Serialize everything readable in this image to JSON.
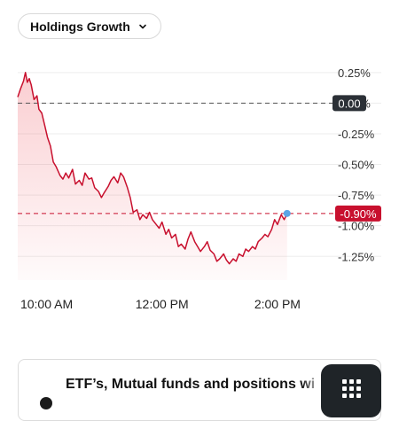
{
  "dropdown": {
    "label": "Holdings Growth",
    "icon": "chevron-down-icon"
  },
  "chart_data": {
    "type": "area",
    "yunit": "%",
    "ylim": [
      -1.4,
      0.35
    ],
    "yticks": [
      0.25,
      0.0,
      -0.25,
      -0.5,
      -0.75,
      -1.0,
      -1.25
    ],
    "ytick_labels": [
      "0.25%",
      "0.00%",
      "-0.25%",
      "-0.50%",
      "-0.75%",
      "-1.00%",
      "-1.25%"
    ],
    "xlim": [
      "09:30",
      "15:00"
    ],
    "xticks": [
      "10:00",
      "12:00",
      "14:00"
    ],
    "xtick_labels": [
      "10:00 AM",
      "12:00 PM",
      "2:00 PM"
    ],
    "grid": true,
    "baseline_value": 0.0,
    "baseline_label": "0.00",
    "current_value": -0.9,
    "current_label": "-0.90%",
    "series": [
      {
        "color": "#c8102e",
        "points": [
          [
            "09:30",
            0.05
          ],
          [
            "09:33",
            0.12
          ],
          [
            "09:36",
            0.18
          ],
          [
            "09:38",
            0.25
          ],
          [
            "09:40",
            0.17
          ],
          [
            "09:42",
            0.2
          ],
          [
            "09:44",
            0.15
          ],
          [
            "09:47",
            0.03
          ],
          [
            "09:50",
            0.06
          ],
          [
            "09:52",
            -0.05
          ],
          [
            "09:55",
            -0.08
          ],
          [
            "09:58",
            -0.18
          ],
          [
            "10:01",
            -0.28
          ],
          [
            "10:04",
            -0.35
          ],
          [
            "10:07",
            -0.48
          ],
          [
            "10:10",
            -0.52
          ],
          [
            "10:14",
            -0.59
          ],
          [
            "10:17",
            -0.62
          ],
          [
            "10:20",
            -0.57
          ],
          [
            "10:23",
            -0.61
          ],
          [
            "10:27",
            -0.54
          ],
          [
            "10:30",
            -0.66
          ],
          [
            "10:34",
            -0.63
          ],
          [
            "10:37",
            -0.67
          ],
          [
            "10:40",
            -0.57
          ],
          [
            "10:44",
            -0.62
          ],
          [
            "10:47",
            -0.61
          ],
          [
            "10:50",
            -0.69
          ],
          [
            "10:54",
            -0.72
          ],
          [
            "10:57",
            -0.77
          ],
          [
            "11:00",
            -0.73
          ],
          [
            "11:04",
            -0.68
          ],
          [
            "11:07",
            -0.63
          ],
          [
            "11:10",
            -0.6
          ],
          [
            "11:14",
            -0.65
          ],
          [
            "11:17",
            -0.57
          ],
          [
            "11:20",
            -0.6
          ],
          [
            "11:24",
            -0.69
          ],
          [
            "11:27",
            -0.77
          ],
          [
            "11:30",
            -0.89
          ],
          [
            "11:34",
            -0.87
          ],
          [
            "11:37",
            -0.95
          ],
          [
            "11:40",
            -0.91
          ],
          [
            "11:44",
            -0.94
          ],
          [
            "11:47",
            -0.89
          ],
          [
            "11:50",
            -0.95
          ],
          [
            "11:54",
            -0.99
          ],
          [
            "11:57",
            -1.02
          ],
          [
            "12:00",
            -0.97
          ],
          [
            "12:04",
            -1.07
          ],
          [
            "12:07",
            -1.03
          ],
          [
            "12:10",
            -1.1
          ],
          [
            "12:14",
            -1.07
          ],
          [
            "12:17",
            -1.17
          ],
          [
            "12:20",
            -1.15
          ],
          [
            "12:24",
            -1.19
          ],
          [
            "12:27",
            -1.11
          ],
          [
            "12:30",
            -1.05
          ],
          [
            "12:34",
            -1.13
          ],
          [
            "12:37",
            -1.17
          ],
          [
            "12:40",
            -1.21
          ],
          [
            "12:44",
            -1.17
          ],
          [
            "12:47",
            -1.13
          ],
          [
            "12:50",
            -1.2
          ],
          [
            "12:54",
            -1.23
          ],
          [
            "12:57",
            -1.29
          ],
          [
            "13:00",
            -1.27
          ],
          [
            "13:04",
            -1.23
          ],
          [
            "13:07",
            -1.28
          ],
          [
            "13:10",
            -1.31
          ],
          [
            "13:14",
            -1.27
          ],
          [
            "13:17",
            -1.29
          ],
          [
            "13:20",
            -1.23
          ],
          [
            "13:24",
            -1.25
          ],
          [
            "13:27",
            -1.19
          ],
          [
            "13:30",
            -1.21
          ],
          [
            "13:34",
            -1.17
          ],
          [
            "13:37",
            -1.19
          ],
          [
            "13:40",
            -1.13
          ],
          [
            "13:44",
            -1.1
          ],
          [
            "13:47",
            -1.07
          ],
          [
            "13:50",
            -1.09
          ],
          [
            "13:54",
            -1.03
          ],
          [
            "13:57",
            -0.95
          ],
          [
            "14:00",
            -0.99
          ],
          [
            "14:04",
            -0.91
          ],
          [
            "14:07",
            -0.95
          ],
          [
            "14:10",
            -0.9
          ]
        ]
      }
    ]
  },
  "card": {
    "title": "ETF’s, Mutual funds and positions wi"
  },
  "fab": {
    "icon": "grid-icon"
  }
}
